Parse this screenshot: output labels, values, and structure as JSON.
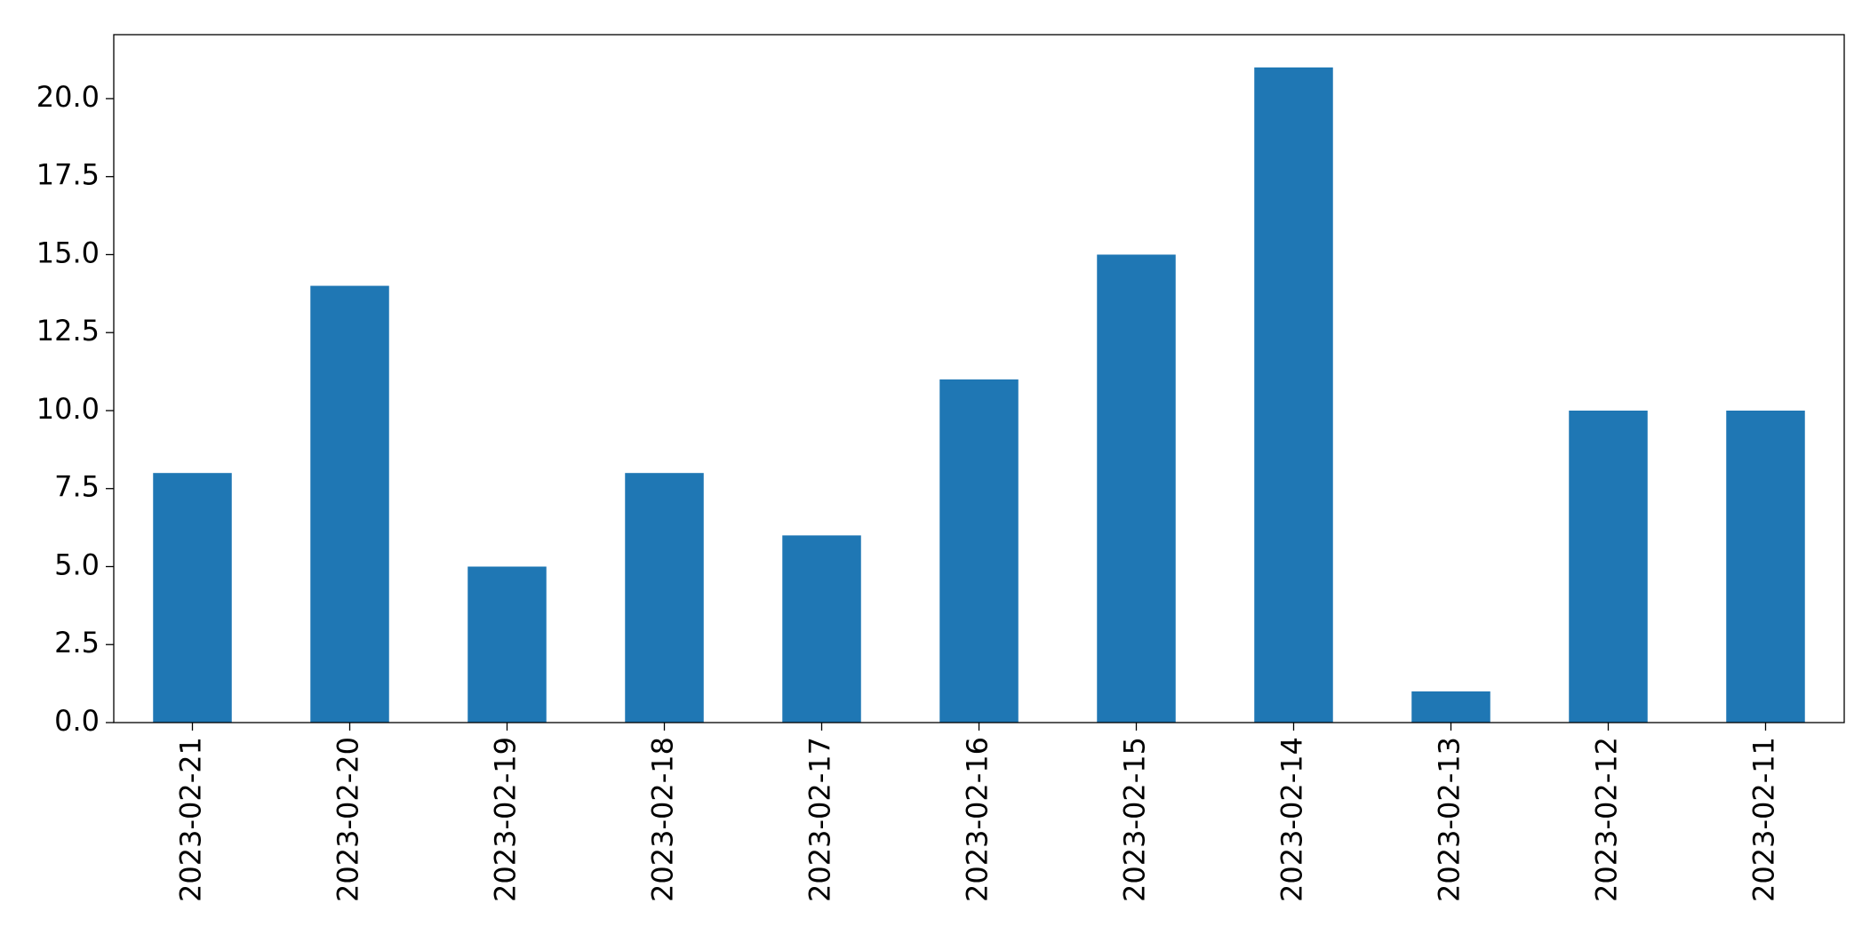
{
  "chart_data": {
    "type": "bar",
    "categories": [
      "2023-02-21",
      "2023-02-20",
      "2023-02-19",
      "2023-02-18",
      "2023-02-17",
      "2023-02-16",
      "2023-02-15",
      "2023-02-14",
      "2023-02-13",
      "2023-02-12",
      "2023-02-11"
    ],
    "values": [
      8,
      14,
      5,
      8,
      6,
      11,
      15,
      21,
      1,
      10,
      10
    ],
    "color": "#1f77b4",
    "ylim": [
      0,
      22.05
    ],
    "yticks": [
      {
        "value": 0,
        "label": "0.0"
      },
      {
        "value": 2.5,
        "label": "2.5"
      },
      {
        "value": 5,
        "label": "5.0"
      },
      {
        "value": 7.5,
        "label": "7.5"
      },
      {
        "value": 10,
        "label": "10.0"
      },
      {
        "value": 12.5,
        "label": "12.5"
      },
      {
        "value": 15,
        "label": "15.0"
      },
      {
        "value": 17.5,
        "label": "17.5"
      },
      {
        "value": 20,
        "label": "20.0"
      }
    ],
    "grid": false
  }
}
